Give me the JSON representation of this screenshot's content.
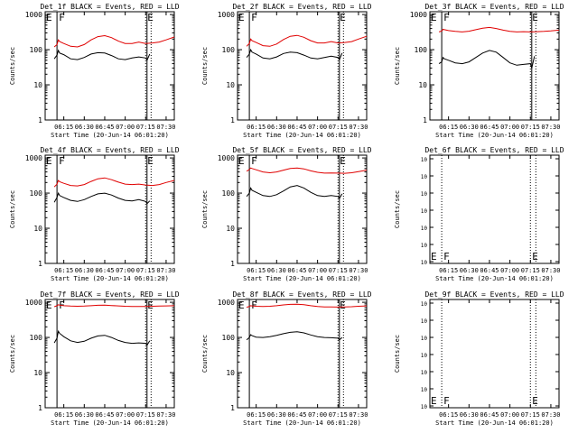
{
  "figure": {
    "ylabel": "Counts/sec",
    "xlabel": "Start Time (20-Jun-14 06:01:20)",
    "xticks": [
      "06:15",
      "06:30",
      "06:45",
      "07:00",
      "07:15",
      "07:30"
    ],
    "xtick_minutes": [
      15,
      30,
      45,
      60,
      75,
      90
    ],
    "xrange_minutes": [
      1.33,
      96
    ],
    "ytick_labels": [
      "1",
      "10",
      "100",
      "1000"
    ],
    "ylim": [
      1,
      1200
    ],
    "yscale": "log",
    "colors": {
      "events": "#000000",
      "lld": "#e00000",
      "axes": "#000000"
    },
    "markers": {
      "first": [
        "E",
        "F"
      ],
      "last": [
        "E"
      ]
    }
  },
  "chart_data": [
    {
      "type": "line",
      "title": "Det_1f BLACK = Events, RED = LLD",
      "marker_minutes": {
        "solid": [
          10,
          76
        ],
        "dotted": [
          75,
          79
        ]
      },
      "series": [
        {
          "name": "Events",
          "x": [
            8,
            10,
            11,
            12,
            15,
            20,
            25,
            30,
            35,
            40,
            45,
            50,
            55,
            60,
            65,
            70,
            75,
            76,
            78
          ],
          "values": [
            55,
            70,
            95,
            80,
            72,
            55,
            52,
            60,
            75,
            82,
            80,
            68,
            55,
            52,
            58,
            62,
            58,
            50,
            75
          ]
        },
        {
          "name": "LLD",
          "x": [
            8,
            10,
            11,
            12,
            15,
            20,
            25,
            30,
            35,
            40,
            45,
            50,
            55,
            60,
            65,
            70,
            75,
            80,
            85,
            90,
            96
          ],
          "values": [
            120,
            140,
            190,
            170,
            150,
            125,
            120,
            140,
            190,
            235,
            250,
            220,
            175,
            150,
            150,
            165,
            150,
            155,
            165,
            190,
            230
          ]
        }
      ]
    },
    {
      "type": "line",
      "title": "Det_2f BLACK = Events, RED = LLD",
      "marker_minutes": {
        "solid": [
          10,
          76
        ],
        "dotted": [
          75,
          79
        ]
      },
      "series": [
        {
          "name": "Events",
          "x": [
            8,
            10,
            11,
            12,
            15,
            20,
            25,
            30,
            35,
            40,
            45,
            50,
            55,
            60,
            65,
            70,
            75,
            76,
            78
          ],
          "values": [
            60,
            75,
            100,
            85,
            75,
            58,
            55,
            62,
            78,
            85,
            82,
            70,
            58,
            55,
            60,
            65,
            60,
            52,
            80
          ]
        },
        {
          "name": "LLD",
          "x": [
            8,
            10,
            11,
            12,
            15,
            20,
            25,
            30,
            35,
            40,
            45,
            50,
            55,
            60,
            65,
            70,
            75,
            80,
            85,
            90,
            96
          ],
          "values": [
            125,
            150,
            200,
            180,
            160,
            130,
            125,
            145,
            195,
            240,
            255,
            225,
            180,
            155,
            155,
            170,
            155,
            160,
            170,
            200,
            240
          ]
        }
      ]
    },
    {
      "type": "line",
      "title": "Det_3f BLACK = Events, RED = LLD",
      "marker_minutes": {
        "solid": [
          10,
          76
        ],
        "dotted": [
          75,
          79
        ]
      },
      "series": [
        {
          "name": "Events",
          "x": [
            8,
            10,
            11,
            12,
            15,
            20,
            25,
            30,
            35,
            40,
            45,
            50,
            55,
            60,
            65,
            70,
            75,
            76,
            78
          ],
          "values": [
            40,
            45,
            60,
            55,
            50,
            42,
            40,
            45,
            60,
            80,
            95,
            85,
            60,
            42,
            36,
            38,
            40,
            30,
            65
          ]
        },
        {
          "name": "LLD",
          "x": [
            8,
            10,
            11,
            12,
            15,
            20,
            25,
            30,
            35,
            40,
            45,
            50,
            55,
            60,
            65,
            70,
            75,
            80,
            85,
            90,
            96
          ],
          "values": [
            320,
            340,
            380,
            370,
            350,
            330,
            320,
            335,
            370,
            410,
            430,
            400,
            360,
            330,
            320,
            325,
            320,
            325,
            330,
            340,
            360
          ]
        }
      ]
    },
    {
      "type": "line",
      "title": "Det_4f BLACK = Events, RED = LLD",
      "marker_minutes": {
        "solid": [
          10,
          76
        ],
        "dotted": [
          75,
          79
        ]
      },
      "series": [
        {
          "name": "Events",
          "x": [
            8,
            10,
            11,
            12,
            15,
            20,
            25,
            30,
            35,
            40,
            45,
            50,
            55,
            60,
            65,
            70,
            75,
            76,
            78
          ],
          "values": [
            55,
            75,
            100,
            85,
            75,
            62,
            58,
            65,
            80,
            95,
            100,
            88,
            72,
            62,
            60,
            65,
            58,
            50,
            60
          ]
        },
        {
          "name": "LLD",
          "x": [
            8,
            10,
            11,
            12,
            15,
            20,
            25,
            30,
            35,
            40,
            45,
            50,
            55,
            60,
            65,
            70,
            75,
            80,
            85,
            90,
            96
          ],
          "values": [
            150,
            180,
            230,
            210,
            190,
            165,
            160,
            175,
            215,
            255,
            270,
            240,
            205,
            180,
            175,
            180,
            170,
            165,
            175,
            200,
            230
          ]
        }
      ]
    },
    {
      "type": "line",
      "title": "Det_5f BLACK = Events, RED = LLD",
      "marker_minutes": {
        "solid": [
          10,
          76
        ],
        "dotted": [
          75,
          79
        ]
      },
      "series": [
        {
          "name": "Events",
          "x": [
            8,
            10,
            11,
            12,
            15,
            20,
            25,
            30,
            35,
            40,
            45,
            50,
            55,
            60,
            65,
            70,
            75,
            76,
            78
          ],
          "values": [
            80,
            100,
            140,
            120,
            105,
            85,
            80,
            90,
            115,
            150,
            165,
            140,
            105,
            85,
            80,
            85,
            80,
            70,
            95
          ]
        },
        {
          "name": "LLD",
          "x": [
            8,
            10,
            11,
            12,
            15,
            20,
            25,
            30,
            35,
            40,
            45,
            50,
            55,
            60,
            65,
            70,
            75,
            80,
            85,
            90,
            96
          ],
          "values": [
            420,
            470,
            520,
            500,
            460,
            400,
            380,
            400,
            450,
            500,
            520,
            490,
            430,
            390,
            370,
            375,
            370,
            365,
            380,
            410,
            450
          ]
        }
      ]
    },
    {
      "type": "line",
      "title": "Det_6f BLACK = Events, RED = LLD",
      "marker_minutes": {
        "solid": [],
        "dotted": [
          10,
          75,
          79
        ]
      },
      "series": []
    },
    {
      "type": "line",
      "title": "Det_7f BLACK = Events, RED = LLD",
      "marker_minutes": {
        "solid": [
          10,
          76
        ],
        "dotted": [
          75,
          79
        ]
      },
      "series": [
        {
          "name": "Events",
          "x": [
            8,
            10,
            11,
            12,
            15,
            20,
            25,
            30,
            35,
            40,
            45,
            50,
            55,
            60,
            65,
            70,
            75,
            76,
            78
          ],
          "values": [
            70,
            95,
            150,
            130,
            105,
            80,
            72,
            78,
            95,
            110,
            115,
            100,
            82,
            72,
            68,
            70,
            68,
            60,
            80
          ]
        },
        {
          "name": "LLD",
          "x": [
            8,
            10,
            11,
            12,
            15,
            20,
            25,
            30,
            35,
            40,
            45,
            50,
            55,
            60,
            65,
            70,
            75,
            80,
            85,
            90,
            96
          ],
          "values": [
            750,
            800,
            850,
            830,
            800,
            780,
            770,
            780,
            800,
            820,
            830,
            810,
            790,
            770,
            760,
            760,
            760,
            770,
            780,
            790,
            800
          ]
        }
      ]
    },
    {
      "type": "line",
      "title": "Det_8f BLACK = Events, RED = LLD",
      "marker_minutes": {
        "solid": [
          10,
          76
        ],
        "dotted": [
          75,
          79
        ]
      },
      "series": [
        {
          "name": "Events",
          "x": [
            8,
            10,
            11,
            12,
            15,
            20,
            25,
            30,
            35,
            40,
            45,
            50,
            55,
            60,
            65,
            70,
            75,
            76,
            78
          ],
          "values": [
            85,
            100,
            120,
            112,
            102,
            100,
            105,
            115,
            128,
            140,
            145,
            135,
            118,
            105,
            100,
            98,
            95,
            85,
            100
          ]
        },
        {
          "name": "LLD",
          "x": [
            8,
            10,
            11,
            12,
            15,
            20,
            25,
            30,
            35,
            40,
            45,
            50,
            55,
            60,
            65,
            70,
            75,
            80,
            85,
            90,
            96
          ],
          "values": [
            720,
            760,
            800,
            790,
            770,
            760,
            770,
            800,
            840,
            870,
            880,
            850,
            800,
            760,
            740,
            735,
            730,
            740,
            750,
            770,
            790
          ]
        }
      ]
    },
    {
      "type": "line",
      "title": "Det_9f BLACK = Events, RED = LLD",
      "marker_minutes": {
        "solid": [],
        "dotted": [
          10,
          75,
          79
        ]
      },
      "series": []
    }
  ]
}
